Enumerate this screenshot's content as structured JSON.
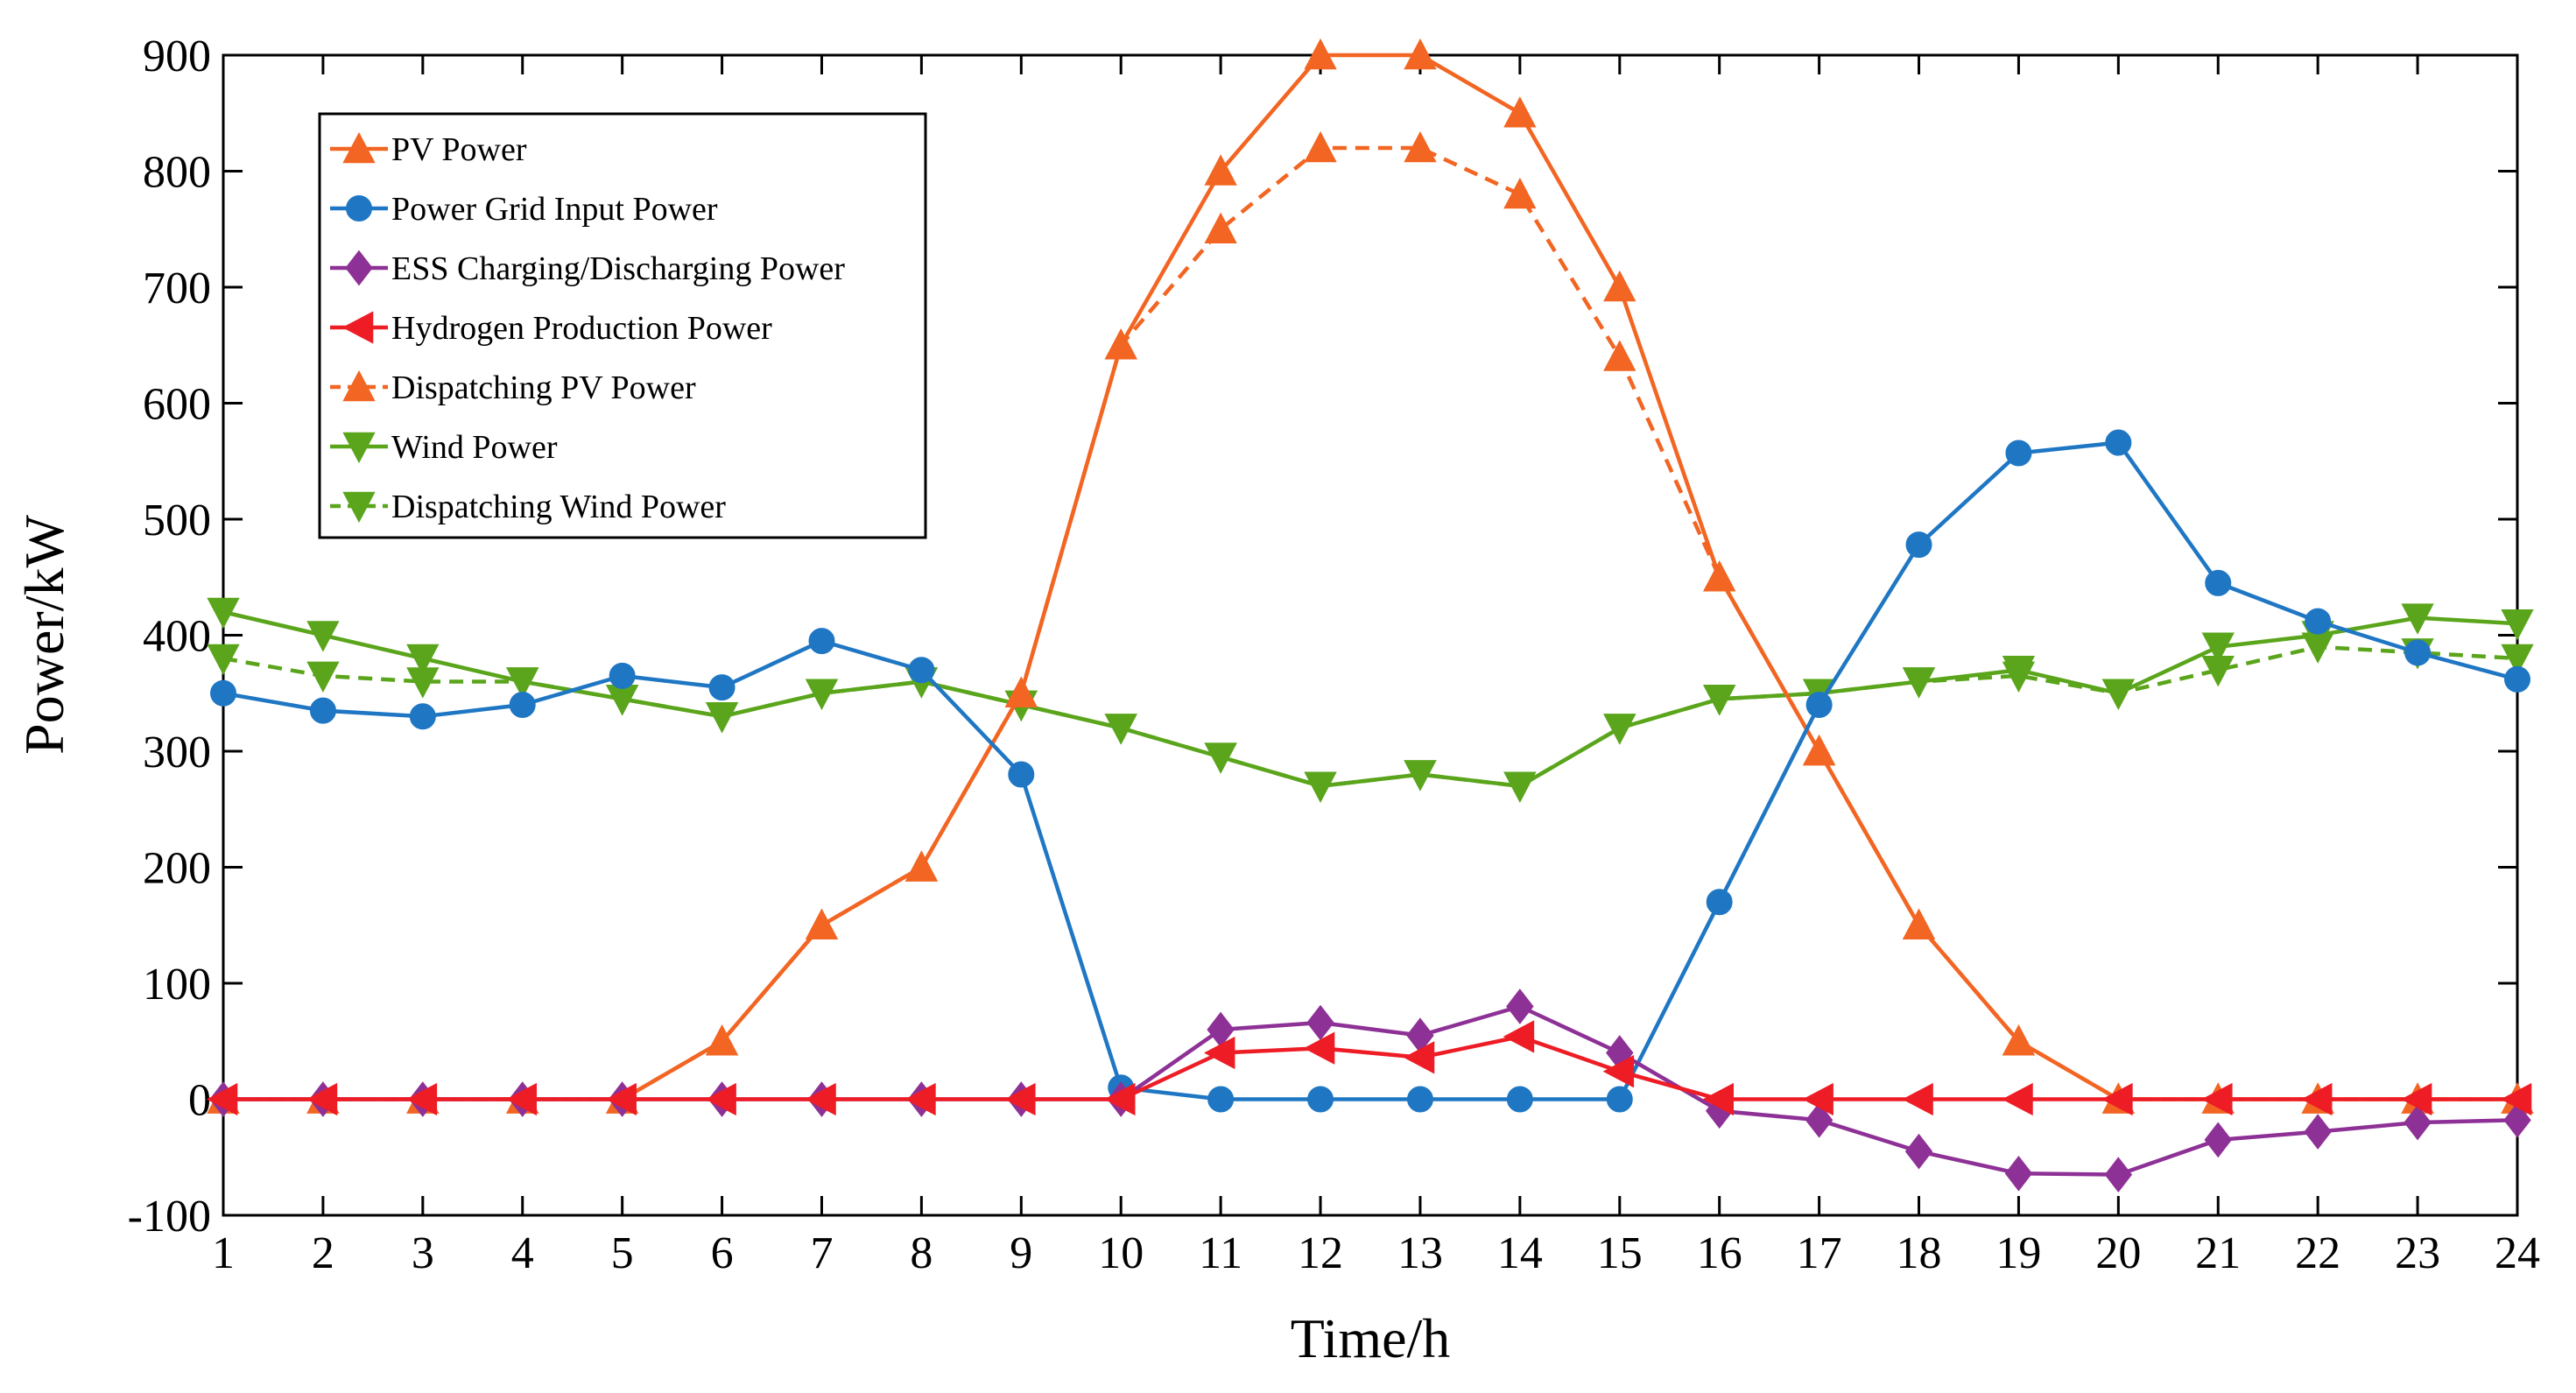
{
  "chart_data": {
    "type": "line",
    "title": "",
    "xlabel": "Time/h",
    "ylabel": "Power/kW",
    "xlim": [
      1,
      24
    ],
    "ylim": [
      -100,
      900
    ],
    "grid": false,
    "legend_position": "top-left",
    "x": [
      1,
      2,
      3,
      4,
      5,
      6,
      7,
      8,
      9,
      10,
      11,
      12,
      13,
      14,
      15,
      16,
      17,
      18,
      19,
      20,
      21,
      22,
      23,
      24
    ],
    "x_ticks": [
      "1",
      "2",
      "3",
      "4",
      "5",
      "6",
      "7",
      "8",
      "9",
      "10",
      "11",
      "12",
      "13",
      "14",
      "15",
      "16",
      "17",
      "18",
      "19",
      "20",
      "21",
      "22",
      "23",
      "24"
    ],
    "y_ticks": [
      "-100",
      "0",
      "100",
      "200",
      "300",
      "400",
      "500",
      "600",
      "700",
      "800",
      "900"
    ],
    "series": [
      {
        "name": "PV Power",
        "color": "#f26522",
        "marker": "triangle-up",
        "line_style": "solid",
        "values": [
          0,
          0,
          0,
          0,
          0,
          50,
          150,
          200,
          350,
          650,
          800,
          900,
          900,
          850,
          700,
          450,
          300,
          150,
          50,
          0,
          0,
          0,
          0,
          0
        ]
      },
      {
        "name": "Power Grid Input Power",
        "color": "#1f77c4",
        "marker": "circle",
        "line_style": "solid",
        "values": [
          350,
          335,
          330,
          340,
          365,
          355,
          395,
          370,
          280,
          10,
          0,
          0,
          0,
          0,
          0,
          170,
          340,
          478,
          557,
          566,
          445,
          412,
          385,
          362
        ]
      },
      {
        "name": "ESS Charging/Discharging Power",
        "color": "#8e3196",
        "marker": "diamond",
        "line_style": "solid",
        "values": [
          0,
          0,
          0,
          0,
          0,
          0,
          0,
          0,
          0,
          0,
          60,
          66,
          55,
          80,
          40,
          -10,
          -18,
          -45,
          -64,
          -65,
          -35,
          -28,
          -20,
          -18
        ]
      },
      {
        "name": "Hydrogen Production Power",
        "color": "#ee1c25",
        "marker": "triangle-left",
        "line_style": "solid",
        "values": [
          0,
          0,
          0,
          0,
          0,
          0,
          0,
          0,
          0,
          0,
          40,
          44,
          36,
          54,
          24,
          0,
          0,
          0,
          0,
          0,
          0,
          0,
          0,
          0
        ]
      },
      {
        "name": "Dispatching PV Power",
        "color": "#f26522",
        "marker": "triangle-up",
        "line_style": "dashed",
        "values": [
          0,
          0,
          0,
          0,
          0,
          50,
          150,
          200,
          350,
          650,
          750,
          820,
          820,
          780,
          640,
          450,
          300,
          150,
          50,
          0,
          0,
          0,
          0,
          0
        ]
      },
      {
        "name": "Wind Power",
        "color": "#5aa51b",
        "marker": "triangle-down",
        "line_style": "solid",
        "values": [
          420,
          400,
          380,
          360,
          345,
          330,
          350,
          360,
          340,
          320,
          295,
          270,
          280,
          270,
          320,
          345,
          350,
          360,
          370,
          350,
          390,
          400,
          415,
          410
        ]
      },
      {
        "name": "Dispatching Wind Power",
        "color": "#5aa51b",
        "marker": "triangle-down",
        "line_style": "dashed",
        "values": [
          380,
          365,
          360,
          360,
          345,
          330,
          350,
          360,
          340,
          320,
          295,
          270,
          280,
          270,
          320,
          345,
          350,
          360,
          365,
          350,
          370,
          390,
          385,
          380
        ]
      }
    ]
  }
}
